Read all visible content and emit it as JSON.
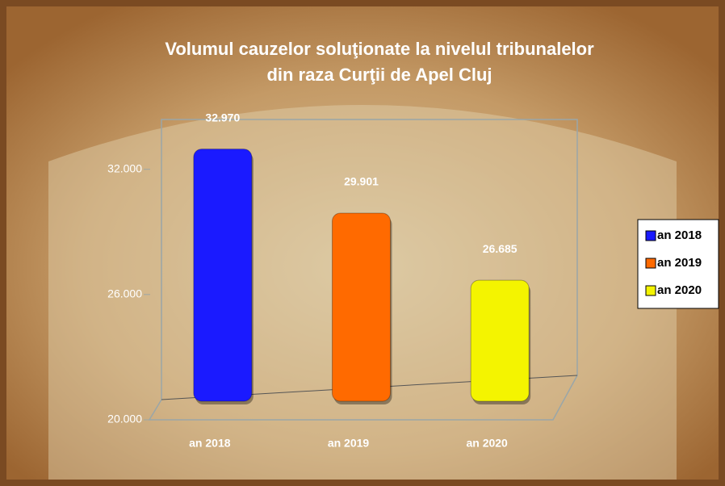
{
  "chart_data": {
    "type": "bar",
    "title": [
      "Volumul cauzelor soluţionate la nivelul tribunalelor",
      "din raza Curţii de Apel Cluj"
    ],
    "categories": [
      "an 2018",
      "an 2019",
      "an 2020"
    ],
    "values": [
      32970,
      29901,
      26685
    ],
    "value_labels": [
      "32.970",
      "29.901",
      "26.685"
    ],
    "colors": [
      "#1a1aff",
      "#ff6a00",
      "#f4f400"
    ],
    "ylim": [
      20000,
      34000
    ],
    "yticks": [
      {
        "value": 20000,
        "label": "20.000"
      },
      {
        "value": 26000,
        "label": "26.000"
      },
      {
        "value": 32000,
        "label": "32.000"
      }
    ],
    "legend": "right"
  }
}
